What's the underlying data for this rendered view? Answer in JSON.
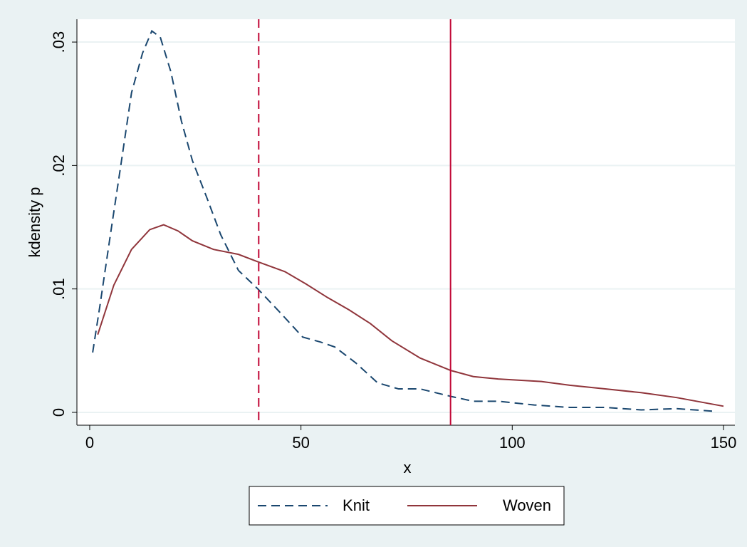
{
  "chart_data": {
    "type": "line",
    "xlabel": "x",
    "ylabel": "kdensity p",
    "xlim": [
      -3.03,
      152.7
    ],
    "ylim": [
      -0.00104,
      0.03185
    ],
    "xticks": [
      0,
      50,
      100,
      150
    ],
    "yticks": [
      {
        "value": 0,
        "label": "0"
      },
      {
        "value": 0.01,
        "label": ".01"
      },
      {
        "value": 0.02,
        "label": ".02"
      },
      {
        "value": 0.03,
        "label": ".03"
      }
    ],
    "grid": true,
    "legend": "bottom",
    "series": [
      {
        "name": "Knit",
        "color": "#1a476f",
        "style": "dash",
        "x": [
          0.7,
          2.4,
          4.9,
          7.4,
          9.9,
          12.5,
          14.7,
          16.7,
          19.2,
          21.7,
          24.3,
          27.6,
          31,
          35.2,
          39.8,
          45.3,
          50.4,
          54.6,
          58,
          63,
          68.1,
          73.1,
          78.2,
          85.4,
          90.8,
          96.7,
          105.2,
          113.6,
          122,
          130.5,
          138.9,
          147.3
        ],
        "values": [
          0.00485,
          0.0086,
          0.0144,
          0.0201,
          0.0259,
          0.0291,
          0.0309,
          0.0304,
          0.0276,
          0.0236,
          0.0204,
          0.0175,
          0.0144,
          0.0115,
          0.01,
          0.008,
          0.0061,
          0.0057,
          0.0053,
          0.004,
          0.0024,
          0.0019,
          0.0019,
          0.0013,
          0.0009,
          0.0009,
          0.0006,
          0.0004,
          0.0004,
          0.0002,
          0.0003,
          0.0001
        ]
      },
      {
        "name": "Woven",
        "color": "#90353b",
        "style": "solid",
        "x": [
          1.9,
          5.7,
          9.9,
          14.2,
          17.5,
          20.9,
          24.3,
          29.3,
          35.2,
          39.8,
          46.2,
          51.2,
          56.3,
          61.4,
          66.4,
          71.5,
          78.2,
          85.4,
          90.8,
          96.7,
          106.9,
          113.6,
          122,
          130.5,
          138.9,
          150
        ],
        "values": [
          0.0063,
          0.0103,
          0.0132,
          0.0148,
          0.0152,
          0.0147,
          0.0139,
          0.0132,
          0.0128,
          0.0122,
          0.0114,
          0.0104,
          0.0093,
          0.0083,
          0.0072,
          0.0058,
          0.0044,
          0.0034,
          0.0029,
          0.0027,
          0.0025,
          0.0022,
          0.0019,
          0.0016,
          0.0012,
          0.0005
        ]
      }
    ],
    "xlines": [
      {
        "value": 40,
        "color": "#c10534",
        "style": "dash"
      },
      {
        "value": 85.4,
        "color": "#c10534",
        "style": "solid"
      }
    ]
  }
}
